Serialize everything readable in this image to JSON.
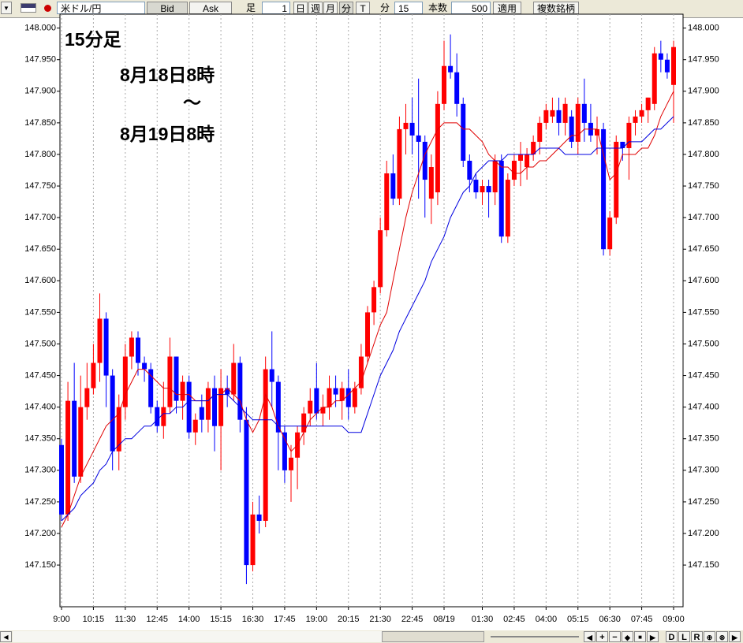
{
  "toolbar": {
    "symbol": "米ドル/円",
    "bid": "Bid",
    "ask": "Ask",
    "ashi": "足",
    "ashi_count": "1",
    "periods": [
      "日",
      "週",
      "月",
      "分",
      "T"
    ],
    "unit": "分",
    "interval": "15",
    "bars_label": "本数",
    "bars": "500",
    "apply": "適用",
    "multi": "複数銘柄"
  },
  "navigator": {
    "buttons": [
      "D",
      "L",
      "R"
    ]
  },
  "chart_data": {
    "type": "candlestick",
    "annotations": [
      "15分足",
      "8月18日8時",
      "～",
      "8月19日8時"
    ],
    "categories": [
      "9:00",
      null,
      null,
      null,
      null,
      "10:15",
      null,
      null,
      null,
      null,
      "11:30",
      null,
      null,
      null,
      null,
      "12:45",
      null,
      null,
      null,
      null,
      "14:00",
      null,
      null,
      null,
      null,
      "15:15",
      null,
      null,
      null,
      null,
      "16:30",
      null,
      null,
      null,
      null,
      "17:45",
      null,
      null,
      null,
      null,
      "19:00",
      null,
      null,
      null,
      null,
      "20:15",
      null,
      null,
      null,
      null,
      "21:30",
      null,
      null,
      null,
      null,
      "22:45",
      null,
      null,
      null,
      null,
      "08/19",
      null,
      null,
      null,
      null,
      null,
      "01:30",
      null,
      null,
      null,
      null,
      "02:45",
      null,
      null,
      null,
      null,
      "04:00",
      null,
      null,
      null,
      null,
      "05:15",
      null,
      null,
      null,
      null,
      "06:30",
      null,
      null,
      null,
      null,
      "07:45",
      null,
      null,
      null,
      null,
      "09:00"
    ],
    "open": [
      147.34,
      147.23,
      147.41,
      147.29,
      147.4,
      147.43,
      147.47,
      147.54,
      147.45,
      147.33,
      147.4,
      147.48,
      147.51,
      147.47,
      147.46,
      147.4,
      147.37,
      147.4,
      147.48,
      147.41,
      147.44,
      147.36,
      147.4,
      147.38,
      147.43,
      147.37,
      147.43,
      147.42,
      147.47,
      147.38,
      147.15,
      147.23,
      147.22,
      147.46,
      147.44,
      147.36,
      147.3,
      147.32,
      147.36,
      147.39,
      147.43,
      147.39,
      147.4,
      147.43,
      147.41,
      147.43,
      147.4,
      147.43,
      147.48,
      147.55,
      147.59,
      147.68,
      147.77,
      147.73,
      147.84,
      147.85,
      147.83,
      147.82,
      147.73,
      147.74,
      147.88,
      147.94,
      147.93,
      147.88,
      147.79,
      147.76,
      147.74,
      147.75,
      147.74,
      147.79,
      147.67,
      147.76,
      147.79,
      147.78,
      147.8,
      147.82,
      147.85,
      147.86,
      147.87,
      147.85,
      147.86,
      147.82,
      147.88,
      147.85,
      147.83,
      147.84,
      147.65,
      147.7,
      147.82,
      147.81,
      147.85,
      147.86,
      147.87,
      147.88,
      147.96,
      147.95,
      147.91
    ],
    "high": [
      147.35,
      147.44,
      147.47,
      147.45,
      147.47,
      147.5,
      147.58,
      147.55,
      147.46,
      147.42,
      147.5,
      147.52,
      147.52,
      147.48,
      147.47,
      147.41,
      147.44,
      147.51,
      147.48,
      147.45,
      147.45,
      147.39,
      147.42,
      147.44,
      147.45,
      147.46,
      147.45,
      147.5,
      147.48,
      147.4,
      147.25,
      147.26,
      147.48,
      147.52,
      147.45,
      147.37,
      147.34,
      147.37,
      147.4,
      147.43,
      147.47,
      147.42,
      147.45,
      147.45,
      147.44,
      147.46,
      147.44,
      147.5,
      147.56,
      147.6,
      147.7,
      147.79,
      147.8,
      147.86,
      147.88,
      147.89,
      147.92,
      147.83,
      147.8,
      147.9,
      147.98,
      147.99,
      147.96,
      147.89,
      147.8,
      147.77,
      147.76,
      147.76,
      147.8,
      147.8,
      147.77,
      147.8,
      147.82,
      147.81,
      147.83,
      147.86,
      147.88,
      147.89,
      147.89,
      147.89,
      147.87,
      147.89,
      147.92,
      147.88,
      147.86,
      147.85,
      147.71,
      147.83,
      147.82,
      147.86,
      147.87,
      147.88,
      147.89,
      147.97,
      147.98,
      147.96,
      147.98
    ],
    "low": [
      147.22,
      147.22,
      147.28,
      147.28,
      147.38,
      147.42,
      147.44,
      147.4,
      147.3,
      147.3,
      147.38,
      147.46,
      147.45,
      147.44,
      147.39,
      147.36,
      147.35,
      147.39,
      147.39,
      147.38,
      147.35,
      147.34,
      147.36,
      147.36,
      147.33,
      147.3,
      147.4,
      147.41,
      147.36,
      147.12,
      147.14,
      147.2,
      147.21,
      147.4,
      147.3,
      147.28,
      147.25,
      147.27,
      147.34,
      147.37,
      147.38,
      147.37,
      147.38,
      147.4,
      147.38,
      147.38,
      147.39,
      147.42,
      147.47,
      147.53,
      147.58,
      147.67,
      147.72,
      147.72,
      147.8,
      147.8,
      147.73,
      147.7,
      147.69,
      147.72,
      147.87,
      147.92,
      147.86,
      147.78,
      147.74,
      147.73,
      147.72,
      147.7,
      147.72,
      147.66,
      147.66,
      147.75,
      147.75,
      147.76,
      147.79,
      147.8,
      147.84,
      147.85,
      147.83,
      147.83,
      147.81,
      147.8,
      147.82,
      147.82,
      147.8,
      147.64,
      147.64,
      147.69,
      147.79,
      147.76,
      147.83,
      147.85,
      147.85,
      147.87,
      147.93,
      147.92,
      147.85
    ],
    "close": [
      147.23,
      147.41,
      147.29,
      147.4,
      147.43,
      147.47,
      147.54,
      147.45,
      147.33,
      147.4,
      147.48,
      147.51,
      147.47,
      147.46,
      147.4,
      147.37,
      147.4,
      147.48,
      147.41,
      147.44,
      147.36,
      147.38,
      147.38,
      147.43,
      147.37,
      147.43,
      147.42,
      147.47,
      147.38,
      147.15,
      147.23,
      147.22,
      147.46,
      147.44,
      147.36,
      147.3,
      147.32,
      147.36,
      147.39,
      147.41,
      147.39,
      147.4,
      147.43,
      147.42,
      147.43,
      147.4,
      147.43,
      147.48,
      147.55,
      147.59,
      147.68,
      147.77,
      147.73,
      147.84,
      147.85,
      147.83,
      147.82,
      147.76,
      147.78,
      147.88,
      147.94,
      147.93,
      147.88,
      147.79,
      147.76,
      147.74,
      147.75,
      147.74,
      147.79,
      147.67,
      147.76,
      147.79,
      147.8,
      147.8,
      147.82,
      147.85,
      147.87,
      147.87,
      147.85,
      147.88,
      147.82,
      147.88,
      147.85,
      147.83,
      147.84,
      147.65,
      147.7,
      147.82,
      147.81,
      147.85,
      147.86,
      147.87,
      147.89,
      147.96,
      147.95,
      147.93,
      147.97
    ],
    "up_color": "#ff0000",
    "down_color": "#0000ff",
    "lines": [
      {
        "color": "#e00000",
        "values": [
          147.21,
          147.23,
          147.26,
          147.29,
          147.31,
          147.33,
          147.35,
          147.37,
          147.38,
          147.39,
          147.42,
          147.44,
          147.46,
          147.46,
          147.45,
          147.44,
          147.43,
          147.43,
          147.42,
          147.42,
          147.42,
          147.41,
          147.41,
          147.41,
          147.42,
          147.42,
          147.43,
          147.42,
          147.41,
          147.38,
          147.36,
          147.38,
          147.42,
          147.4,
          147.37,
          147.35,
          147.33,
          147.34,
          147.36,
          147.38,
          147.39,
          147.4,
          147.4,
          147.41,
          147.41,
          147.42,
          147.43,
          147.44,
          147.47,
          147.5,
          147.53,
          147.55,
          147.6,
          147.65,
          147.7,
          147.74,
          147.77,
          147.8,
          147.82,
          147.84,
          147.85,
          147.85,
          147.85,
          147.84,
          147.84,
          147.83,
          147.82,
          147.8,
          147.79,
          147.78,
          147.78,
          147.77,
          147.77,
          147.78,
          147.78,
          147.79,
          147.79,
          147.8,
          147.81,
          147.82,
          147.83,
          147.83,
          147.84,
          147.84,
          147.84,
          147.8,
          147.76,
          147.77,
          147.8,
          147.8,
          147.8,
          147.81,
          147.81,
          147.83,
          147.86,
          147.88,
          147.9
        ]
      },
      {
        "color": "#0000e0",
        "values": [
          147.22,
          147.23,
          147.24,
          147.26,
          147.27,
          147.28,
          147.3,
          147.31,
          147.33,
          147.34,
          147.35,
          147.35,
          147.36,
          147.37,
          147.37,
          147.38,
          147.39,
          147.39,
          147.4,
          147.4,
          147.41,
          147.41,
          147.41,
          147.41,
          147.42,
          147.42,
          147.42,
          147.41,
          147.4,
          147.39,
          147.38,
          147.38,
          147.38,
          147.38,
          147.37,
          147.37,
          147.37,
          147.37,
          147.37,
          147.37,
          147.37,
          147.37,
          147.37,
          147.37,
          147.37,
          147.36,
          147.36,
          147.36,
          147.39,
          147.42,
          147.45,
          147.47,
          147.49,
          147.52,
          147.54,
          147.56,
          147.58,
          147.6,
          147.63,
          147.65,
          147.67,
          147.7,
          147.72,
          147.74,
          147.75,
          147.77,
          147.78,
          147.79,
          147.79,
          147.79,
          147.8,
          147.8,
          147.8,
          147.8,
          147.8,
          147.81,
          147.81,
          147.81,
          147.81,
          147.8,
          147.8,
          147.8,
          147.8,
          147.8,
          147.81,
          147.81,
          147.81,
          147.81,
          147.81,
          147.82,
          147.82,
          147.82,
          147.83,
          147.84,
          147.84,
          147.85,
          147.86
        ]
      }
    ],
    "ylim": [
      147.084,
      148.022
    ],
    "yticks": [
      {
        "value": 148,
        "label": "148.000"
      },
      {
        "value": 147.95,
        "label": "147.950"
      },
      {
        "value": 147.9,
        "label": "147.900"
      },
      {
        "value": 147.85,
        "label": "147.850"
      },
      {
        "value": 147.8,
        "label": "147.800"
      },
      {
        "value": 147.75,
        "label": "147.750"
      },
      {
        "value": 147.7,
        "label": "147.700"
      },
      {
        "value": 147.65,
        "label": "147.650"
      },
      {
        "value": 147.6,
        "label": "147.600"
      },
      {
        "value": 147.55,
        "label": "147.550"
      },
      {
        "value": 147.5,
        "label": "147.500"
      },
      {
        "value": 147.45,
        "label": "147.450"
      },
      {
        "value": 147.4,
        "label": "147.400"
      },
      {
        "value": 147.35,
        "label": "147.350"
      },
      {
        "value": 147.3,
        "label": "147.300"
      },
      {
        "value": 147.25,
        "label": "147.250"
      },
      {
        "value": 147.2,
        "label": "147.200"
      },
      {
        "value": 147.15,
        "label": "147.150"
      }
    ],
    "grid": true
  }
}
